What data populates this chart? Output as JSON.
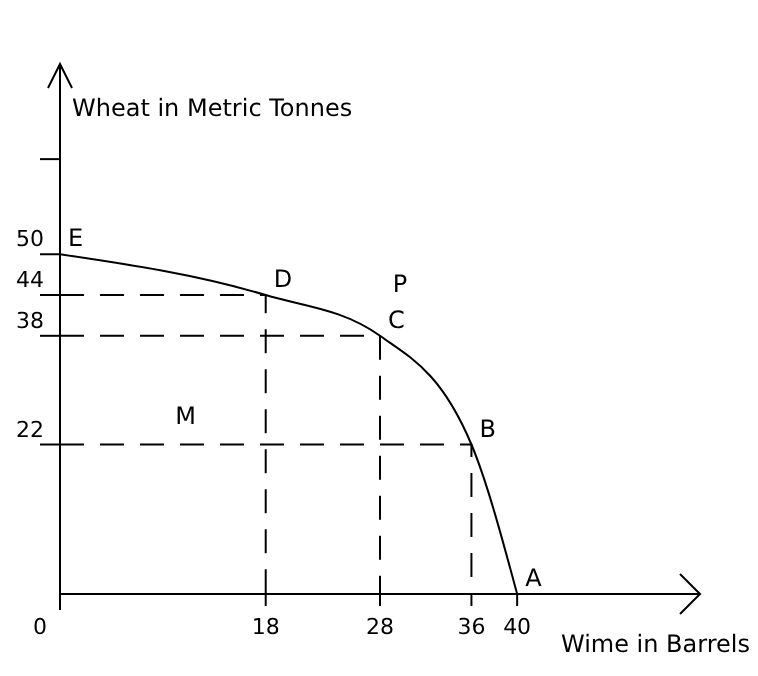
{
  "chart_data": {
    "type": "line",
    "xlabel": "Wime in Barrels",
    "ylabel": "Wheat in Metric Tonnes",
    "xlim": [
      0,
      56
    ],
    "ylim": [
      0,
      78
    ],
    "xticks": [
      0,
      18,
      28,
      36,
      40
    ],
    "yticks": [
      22,
      38,
      44,
      50,
      {
        "value": 64,
        "label": null
      }
    ],
    "grid": false,
    "marker": "none",
    "series": [
      {
        "color": "#000000",
        "x": [
          0,
          18,
          28,
          36,
          40
        ],
        "values": [
          50,
          44,
          38,
          22,
          0
        ],
        "line_style": "solid"
      },
      {
        "color": "#000000",
        "x": [
          0,
          18,
          18
        ],
        "values": [
          44,
          44,
          0
        ],
        "line_style": "dashed"
      },
      {
        "color": "#000000",
        "x": [
          0,
          28,
          28
        ],
        "values": [
          38,
          38,
          0
        ],
        "line_style": "dashed"
      },
      {
        "color": "#000000",
        "x": [
          0,
          36,
          36
        ],
        "values": [
          22,
          22,
          0
        ],
        "line_style": "dashed"
      }
    ],
    "annotations": [
      {
        "text": "E",
        "x": 0,
        "y": 50
      },
      {
        "text": "D",
        "x": 18,
        "y": 44
      },
      {
        "text": "C",
        "x": 28,
        "y": 38
      },
      {
        "text": "B",
        "x": 36,
        "y": 22
      },
      {
        "text": "A",
        "x": 40,
        "y": 0
      },
      "P",
      "M"
    ]
  }
}
